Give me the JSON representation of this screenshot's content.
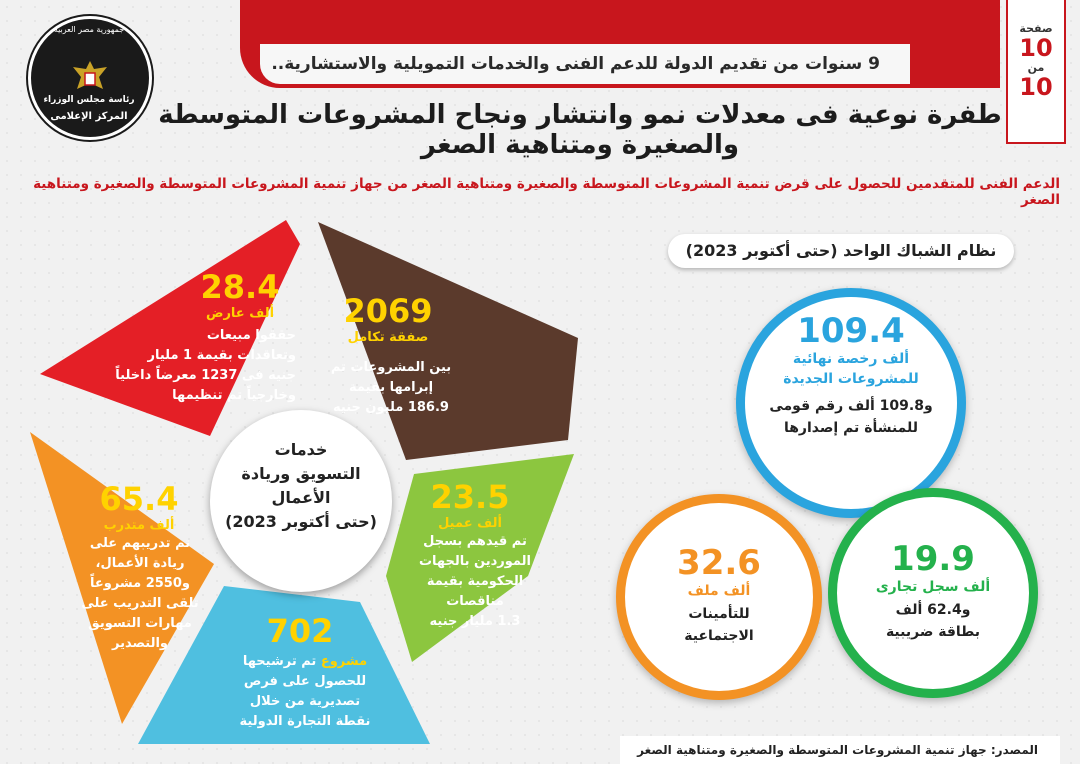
{
  "header": {
    "banner": "9 سنوات من تقديم الدولة للدعم الفنى والخدمات التمويلية والاستشارية..",
    "page_label": "صفحة",
    "page_current": "10",
    "page_of_label": "من",
    "page_total": "10"
  },
  "logo": {
    "top_text": "جمهورية مصر العربية",
    "middle_text": "رئاسة مجلس الوزراء",
    "bottom_text": "المركز الإعلامى"
  },
  "title": "طفرة نوعية فى معدلات نمو وانتشار ونجاح المشروعات المتوسطة والصغيرة ومتناهية الصغر",
  "subtitle": "الدعم الفنى للمتقدمين للحصول على قرض تنمية المشروعات المتوسطة والصغيرة ومتناهية الصغر من جهاز تنمية المشروعات المتوسطة والصغيرة ومتناهية الصغر",
  "one_window": {
    "heading": "نظام الشباك الواحد (حتى أكتوبر 2023)",
    "blue": {
      "value": "109.4",
      "unit_1": "ألف رخصة نهائية",
      "unit_2": "للمشروعات الجديدة",
      "body_1": "و109.8 ألف رقم قومى",
      "body_2": "للمنشأة تم إصدارها"
    },
    "orange": {
      "value": "32.6",
      "unit": "ألف ملف",
      "body_1": "للتأمينات",
      "body_2": "الاجتماعية"
    },
    "green": {
      "value": "19.9",
      "unit": "ألف سجل تجارى",
      "body_1": "و62.4 ألف",
      "body_2": "بطاقة ضريبية"
    }
  },
  "marketing": {
    "center_1": "خدمات",
    "center_2": "التسويق وريادة",
    "center_3": "الأعمال",
    "center_4": "(حتى أكتوبر 2023)",
    "red": {
      "value": "28.4",
      "unit": "ألف عارض",
      "lines": [
        "حققوا مبيعات",
        "وتعاقدات بقيمة 1 مليار",
        "جنيه فى 1237 معرضاً داخلياً",
        "وخارجياً تم تنظيمها"
      ]
    },
    "brown": {
      "value": "2069",
      "unit": "صفقة تكامل",
      "lines": [
        "بين المشروعات تم",
        "إبرامها بقيمة",
        "186.9 مليون جنيه"
      ]
    },
    "orange": {
      "value": "65.4",
      "unit": "ألف متدرب",
      "lines": [
        "تم تدريبهم على",
        "ريادة الأعمال،",
        "و2550 مشروعاً",
        "تلقى التدريب على",
        "مهارات التسويق",
        "والتصدير"
      ]
    },
    "green": {
      "value": "23.5",
      "unit": "ألف عميل",
      "lines": [
        "تم قيدهم بسجل",
        "الموردين بالجهات",
        "الحكومية بقيمة",
        "مناقصات",
        "1.3 مليار جنيه"
      ]
    },
    "blue": {
      "value": "702",
      "unit": "مشروع",
      "lines": [
        "تم ترشيحها",
        "للحصول على فرص",
        "تصديرية من خلال",
        "نقطة التجارة الدولية"
      ]
    }
  },
  "source": "المصدر: جهاز تنمية المشروعات المتوسطة والصغيرة ومتناهية الصغر",
  "colors": {
    "red": "#e41f26",
    "brown": "#5b3a2c",
    "orange": "#f39224",
    "green": "#8cc63f",
    "blue": "#4fbfe0",
    "gold": "#ffd200"
  }
}
